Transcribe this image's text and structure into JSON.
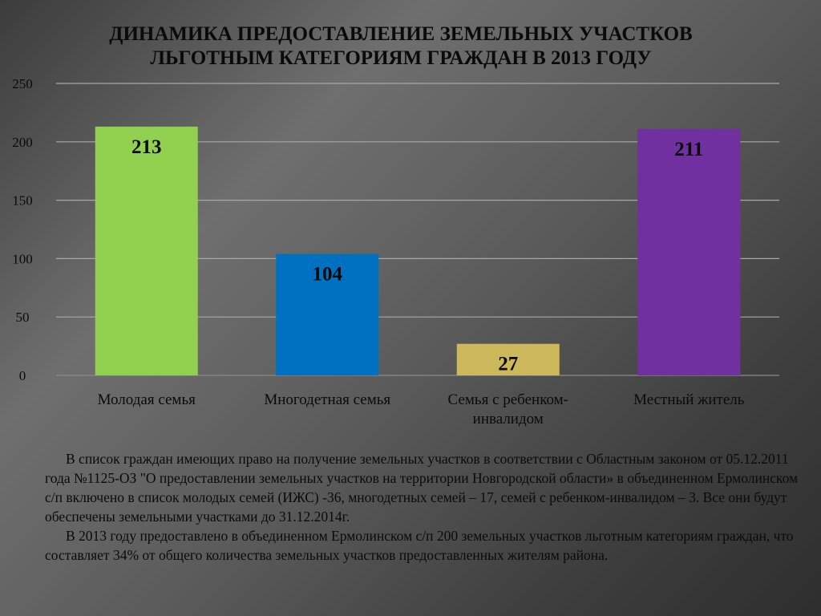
{
  "title": {
    "line1": "ДИНАМИКА ПРЕДОСТАВЛЕНИЕ ЗЕМЕЛЬНЫХ УЧАСТКОВ",
    "line2": "ЛЬГОТНЫМ КАТЕГОРИЯМ ГРАЖДАН В 2013 ГОДУ"
  },
  "chart_data": {
    "type": "bar",
    "title": "ДИНАМИКА ПРЕДОСТАВЛЕНИЕ ЗЕМЕЛЬНЫХ УЧАСТКОВ ЛЬГОТНЫМ КАТЕГОРИЯМ ГРАЖДАН В 2013 ГОДУ",
    "categories": [
      [
        "Молодая семья"
      ],
      [
        "Многодетная семья"
      ],
      [
        "Семья с ребенком-",
        "инвалидом"
      ],
      [
        "Местный житель"
      ]
    ],
    "values": [
      213,
      104,
      27,
      211
    ],
    "data_labels": [
      "213",
      "104",
      "27",
      "211"
    ],
    "colors": [
      "#92d050",
      "#0070c0",
      "#cdb85c",
      "#7030a0"
    ],
    "yticks": [
      0,
      50,
      100,
      150,
      200,
      250
    ],
    "ytick_labels": [
      "0",
      "50",
      "100",
      "150",
      "200",
      "250"
    ],
    "ylim": [
      0,
      250
    ],
    "grid": true,
    "legend": "none"
  },
  "description": {
    "paragraph1": "В список граждан имеющих право на получение земельных участков в соответствии с Областным законом от 05.12.2011 года №1125-ОЗ \"О предоставлении земельных участков на территории Новгородской области» в объединенном Ермолинском с/п включено в список молодых семей (ИЖС) -36, многодетных семей – 17, семей с ребенком-инвалидом – 3. Все они будут обеспечены земельными участками до 31.12.2014г.",
    "paragraph2": "В 2013 году предоставлено в объединенном Ермолинском с/п 200 земельных участков льготным категориям граждан, что составляет 34% от общего количества земельных участков предоставленных жителям района."
  }
}
